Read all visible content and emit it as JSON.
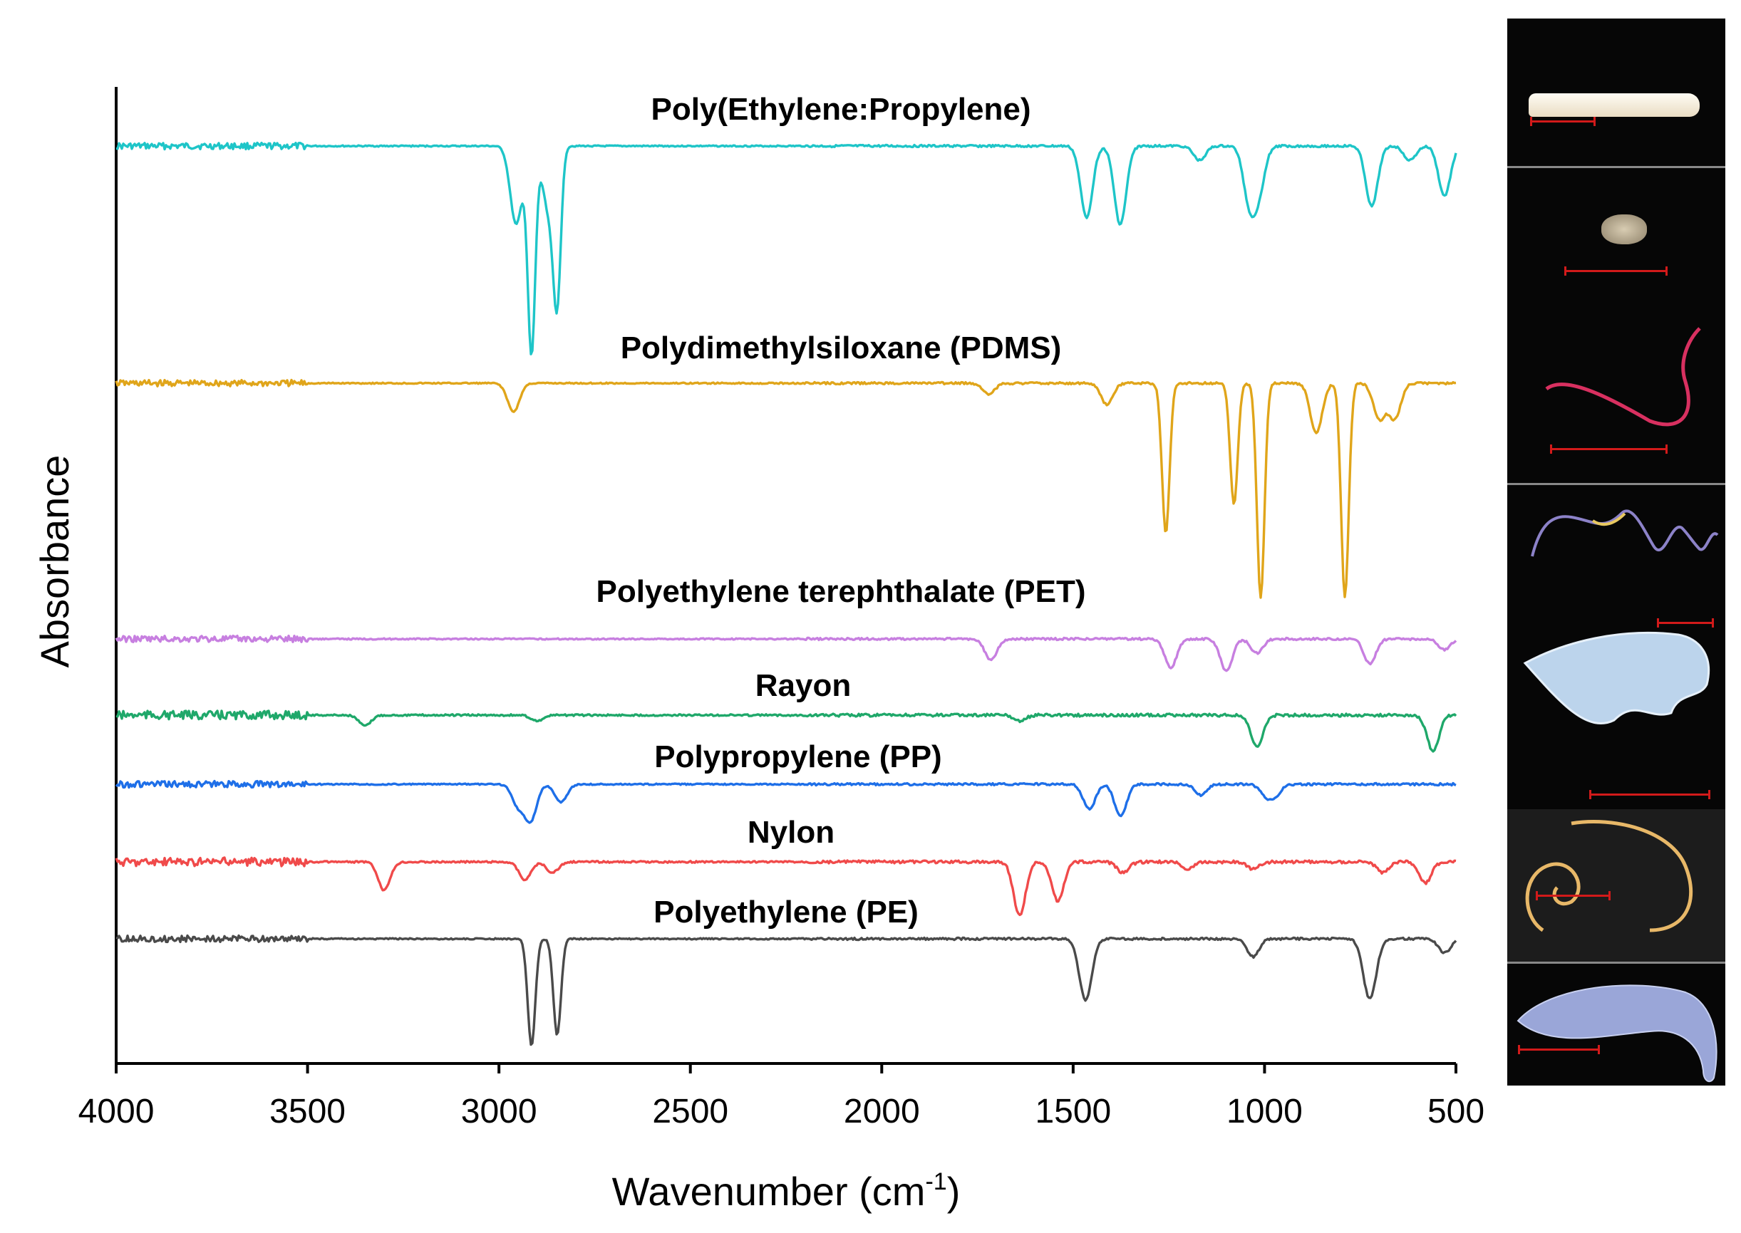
{
  "chart_data": {
    "type": "line",
    "xlabel": "Wavenumber (cm",
    "xlabel_sup": "-1",
    "xlabel_close": ")",
    "ylabel": "Absorbance",
    "xlim": [
      4000,
      500
    ],
    "x_reversed": true,
    "x_ticks": [
      "4000",
      "3500",
      "3000",
      "2500",
      "2000",
      "1500",
      "1000",
      "500"
    ],
    "y_ticks_shown": false,
    "note": "Spectra are vertically offset (stacked); peaks are absorbance bands drawn as downward dips.",
    "series": [
      {
        "name": "Poly(Ethylene:Propylene)",
        "color": "#1ec5c8",
        "bands": [
          [
            2955,
            110
          ],
          [
            2915,
            290
          ],
          [
            2870,
            90
          ],
          [
            2848,
            200
          ],
          [
            1465,
            100
          ],
          [
            1377,
            110
          ],
          [
            1170,
            20
          ],
          [
            1040,
            75
          ],
          [
            1015,
            60
          ],
          [
            720,
            85
          ],
          [
            620,
            20
          ],
          [
            530,
            70
          ]
        ]
      },
      {
        "name": "Polydimethylsiloxane (PDMS)",
        "color": "#e0a51a",
        "bands": [
          [
            2962,
            40
          ],
          [
            1720,
            15
          ],
          [
            1412,
            30
          ],
          [
            1258,
            210
          ],
          [
            1080,
            170
          ],
          [
            1010,
            300
          ],
          [
            865,
            70
          ],
          [
            790,
            300
          ],
          [
            700,
            50
          ],
          [
            660,
            50
          ]
        ]
      },
      {
        "name": "Polyethylene terephthalate (PET)",
        "color": "#c77fe0",
        "bands": [
          [
            1715,
            30
          ],
          [
            1245,
            40
          ],
          [
            1100,
            45
          ],
          [
            1020,
            20
          ],
          [
            725,
            35
          ],
          [
            530,
            15
          ]
        ]
      },
      {
        "name": "Rayon",
        "color": "#1fa86a",
        "bands": [
          [
            3350,
            15
          ],
          [
            2900,
            8
          ],
          [
            1640,
            8
          ],
          [
            1020,
            45
          ],
          [
            560,
            50
          ]
        ]
      },
      {
        "name": "Polypropylene (PP)",
        "color": "#1e6fe8",
        "bands": [
          [
            2950,
            30
          ],
          [
            2917,
            50
          ],
          [
            2838,
            25
          ],
          [
            1458,
            35
          ],
          [
            1376,
            45
          ],
          [
            1166,
            15
          ],
          [
            997,
            15
          ],
          [
            973,
            15
          ]
        ]
      },
      {
        "name": "Nylon",
        "color": "#f04a4a",
        "bands": [
          [
            3300,
            40
          ],
          [
            2932,
            25
          ],
          [
            2860,
            15
          ],
          [
            1640,
            75
          ],
          [
            1540,
            55
          ],
          [
            1370,
            15
          ],
          [
            1200,
            10
          ],
          [
            1030,
            10
          ],
          [
            690,
            15
          ],
          [
            580,
            30
          ]
        ]
      },
      {
        "name": "Polyethylene (PE)",
        "color": "#4a4a4a",
        "bands": [
          [
            2915,
            150
          ],
          [
            2848,
            135
          ],
          [
            1472,
            50
          ],
          [
            1462,
            40
          ],
          [
            1030,
            25
          ],
          [
            730,
            50
          ],
          [
            719,
            40
          ],
          [
            530,
            20
          ]
        ]
      }
    ]
  },
  "photos": {
    "count": 7,
    "description_hidden": true
  }
}
